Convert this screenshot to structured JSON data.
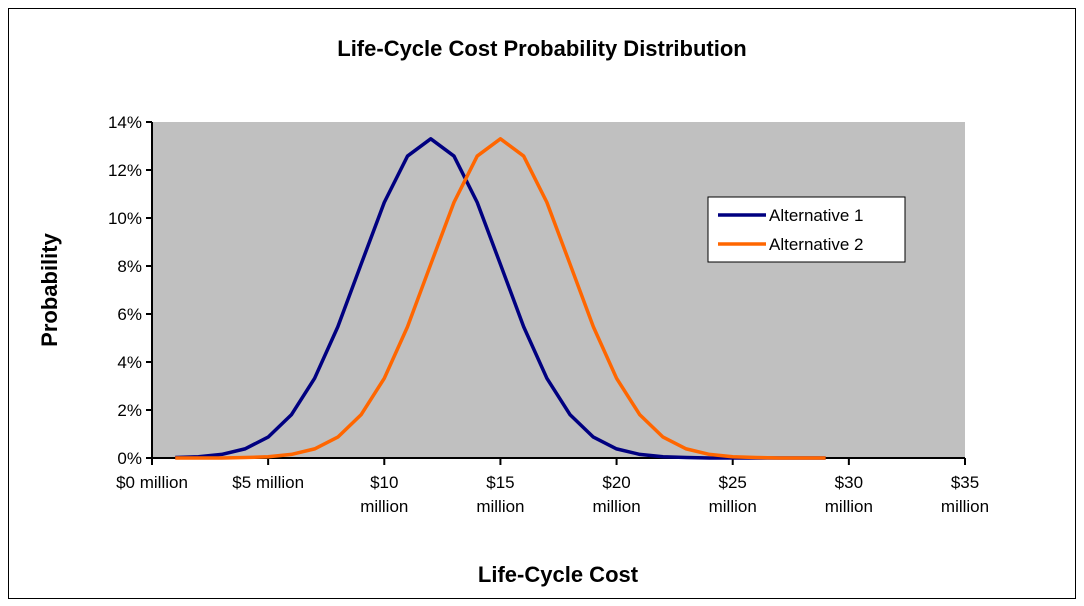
{
  "chart_data": {
    "type": "line",
    "title": "Life-Cycle Cost Probability Distribution",
    "x_label": "Life-Cycle Cost",
    "y_label": "Probability",
    "x": [
      1,
      2,
      3,
      4,
      5,
      6,
      7,
      8,
      9,
      10,
      11,
      12,
      13,
      14,
      15,
      16,
      17,
      18,
      19,
      20,
      21,
      22,
      23,
      24,
      25,
      26,
      27,
      28,
      29
    ],
    "series": [
      {
        "name": "Alternative 1",
        "color": "#000080",
        "values": [
          0.02,
          0.05,
          0.15,
          0.38,
          0.87,
          1.8,
          3.32,
          5.47,
          8.07,
          10.65,
          12.58,
          13.3,
          12.58,
          10.65,
          8.07,
          5.47,
          3.32,
          1.8,
          0.87,
          0.38,
          0.15,
          0.05,
          0.02,
          0,
          0,
          0,
          0,
          0,
          0
        ]
      },
      {
        "name": "Alternative 2",
        "color": "#FF6600",
        "values": [
          0,
          0,
          0,
          0.02,
          0.05,
          0.15,
          0.38,
          0.87,
          1.8,
          3.32,
          5.47,
          8.07,
          10.65,
          12.58,
          13.3,
          12.58,
          10.65,
          8.07,
          5.47,
          3.32,
          1.8,
          0.87,
          0.38,
          0.15,
          0.05,
          0.02,
          0,
          0,
          0
        ]
      }
    ],
    "xlim": [
      0,
      35
    ],
    "xticks": [
      {
        "value": 0,
        "label": "$0 million"
      },
      {
        "value": 5,
        "label": "$5 million"
      },
      {
        "value": 10,
        "label": "$10 million"
      },
      {
        "value": 15,
        "label": "$15 million"
      },
      {
        "value": 20,
        "label": "$20 million"
      },
      {
        "value": 25,
        "label": "$25 million"
      },
      {
        "value": 30,
        "label": "$30 million"
      },
      {
        "value": 35,
        "label": "$35 million"
      }
    ],
    "ylim": [
      0,
      14
    ],
    "yticks": [
      {
        "value": 0,
        "label": "0%"
      },
      {
        "value": 2,
        "label": "2%"
      },
      {
        "value": 4,
        "label": "4%"
      },
      {
        "value": 6,
        "label": "6%"
      },
      {
        "value": 8,
        "label": "8%"
      },
      {
        "value": 10,
        "label": "10%"
      },
      {
        "value": 12,
        "label": "12%"
      },
      {
        "value": 14,
        "label": "14%"
      }
    ],
    "grid": false,
    "legend": "right"
  }
}
